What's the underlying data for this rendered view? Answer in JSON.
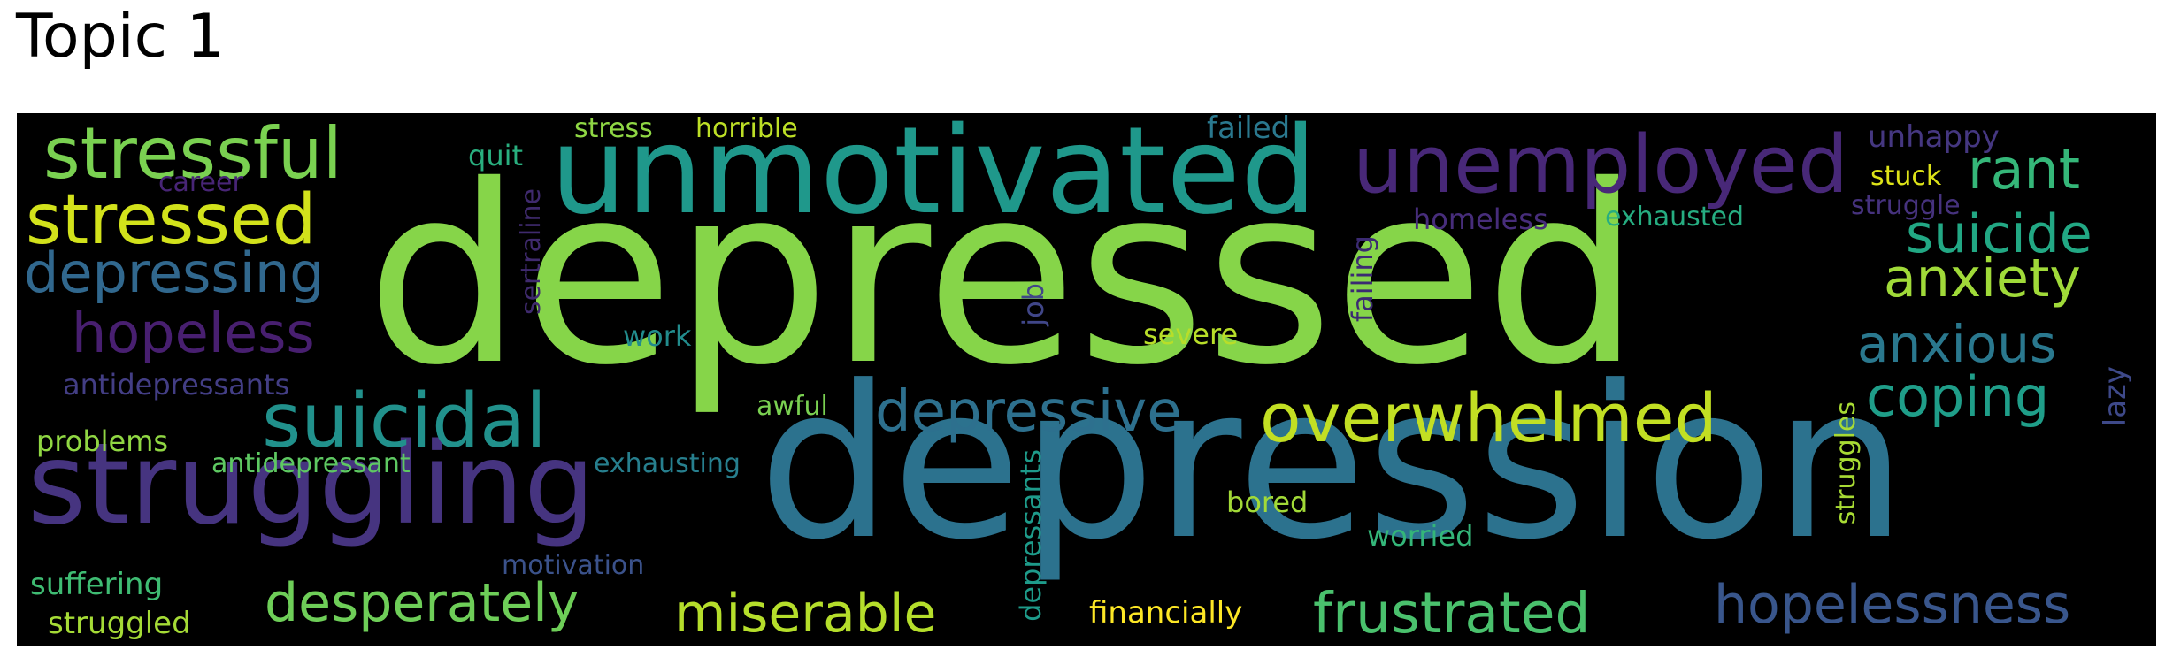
{
  "title": "Topic 1",
  "words": [
    {
      "text": "depressed",
      "color": "#86d549"
    },
    {
      "text": "depression",
      "color": "#2c728e"
    },
    {
      "text": "unmotivated",
      "color": "#1f988b"
    },
    {
      "text": "struggling",
      "color": "#463480"
    },
    {
      "text": "unemployed",
      "color": "#482878"
    },
    {
      "text": "stressful",
      "color": "#7ad151"
    },
    {
      "text": "stressed",
      "color": "#d2e21b"
    },
    {
      "text": "suicidal",
      "color": "#21918c"
    },
    {
      "text": "overwhelmed",
      "color": "#c2df23"
    },
    {
      "text": "depressive",
      "color": "#2d708e"
    },
    {
      "text": "depressing",
      "color": "#31688e"
    },
    {
      "text": "hopeless",
      "color": "#481f70"
    },
    {
      "text": "hopelessness",
      "color": "#39568c"
    },
    {
      "text": "frustrated",
      "color": "#4ac16d"
    },
    {
      "text": "miserable",
      "color": "#b5de2b"
    },
    {
      "text": "desperately",
      "color": "#6ece58"
    },
    {
      "text": "rant",
      "color": "#35b779"
    },
    {
      "text": "suicide",
      "color": "#22a884"
    },
    {
      "text": "anxiety",
      "color": "#a0da39"
    },
    {
      "text": "anxious",
      "color": "#2a788e"
    },
    {
      "text": "coping",
      "color": "#1f9e89"
    },
    {
      "text": "antidepressants",
      "color": "#433e85"
    },
    {
      "text": "problems",
      "color": "#90d743"
    },
    {
      "text": "antidepressant",
      "color": "#5ec962"
    },
    {
      "text": "suffering",
      "color": "#3fbc73"
    },
    {
      "text": "struggled",
      "color": "#a5db36"
    },
    {
      "text": "motivation",
      "color": "#3b528b"
    },
    {
      "text": "exhausting",
      "color": "#277f8e"
    },
    {
      "text": "awful",
      "color": "#7ad151"
    },
    {
      "text": "work",
      "color": "#228c8d"
    },
    {
      "text": "severe",
      "color": "#b8de29"
    },
    {
      "text": "failed",
      "color": "#2a788e"
    },
    {
      "text": "quit",
      "color": "#29af7f"
    },
    {
      "text": "stress",
      "color": "#8fd744"
    },
    {
      "text": "horrible",
      "color": "#bddf26"
    },
    {
      "text": "career",
      "color": "#482576"
    },
    {
      "text": "homeless",
      "color": "#472d7b"
    },
    {
      "text": "exhausted",
      "color": "#26ad81"
    },
    {
      "text": "unhappy",
      "color": "#453781"
    },
    {
      "text": "stuck",
      "color": "#dde318"
    },
    {
      "text": "struggle",
      "color": "#46327e"
    },
    {
      "text": "bored",
      "color": "#a2da37"
    },
    {
      "text": "worried",
      "color": "#34b679"
    },
    {
      "text": "financially",
      "color": "#fde725"
    },
    {
      "text": "sertraline",
      "color": "#3f2a6e"
    },
    {
      "text": "job",
      "color": "#404688"
    },
    {
      "text": "failing",
      "color": "#3b2a72"
    },
    {
      "text": "depressants",
      "color": "#1e9b8a"
    },
    {
      "text": "struggles",
      "color": "#a8db34"
    },
    {
      "text": "lazy",
      "color": "#3e4989"
    }
  ]
}
